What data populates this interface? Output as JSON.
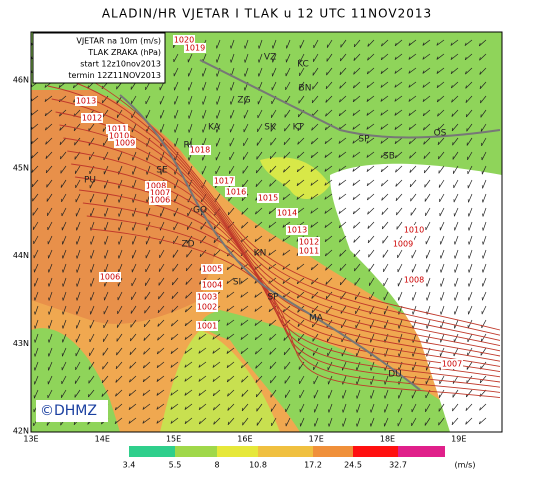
{
  "header": {
    "title": "ALADIN/HR VJETAR I TLAK u 12 UTC 11NOV2013"
  },
  "legend": {
    "lines": [
      "VJETAR na 10m (m/s)",
      "TLAK ZRAKA (hPa)",
      "start 12z10nov2013",
      "termin 12Z11NOV2013"
    ]
  },
  "axes": {
    "lat": [
      "46N",
      "45N",
      "44N",
      "43N",
      "42N"
    ],
    "lon": [
      "13E",
      "14E",
      "15E",
      "16E",
      "17E",
      "18E",
      "19E"
    ]
  },
  "colorbar": {
    "labels": [
      "3.4",
      "5.5",
      "8",
      "10.8",
      "17.2",
      "24.5",
      "32.7"
    ],
    "unit": "(m/s)"
  },
  "isobar_labels": [
    "1020",
    "1019",
    "1013",
    "1012",
    "1011",
    "1010",
    "1009",
    "1018",
    "1008",
    "1007",
    "1006",
    "1017",
    "1016",
    "1015",
    "1014",
    "1013",
    "1012",
    "1011",
    "1010",
    "1009",
    "1008",
    "1005",
    "1004",
    "1003",
    "1002",
    "1001",
    "1006",
    "1007"
  ],
  "cities": [
    "VZ",
    "KC",
    "BN",
    "ZG",
    "KA",
    "SK",
    "KT",
    "SP",
    "OS",
    "SB",
    "RI",
    "GO",
    "PU",
    "SE",
    "ZD",
    "KN",
    "SI",
    "SP",
    "MA",
    "DU"
  ],
  "credit": "©DHMZ"
}
